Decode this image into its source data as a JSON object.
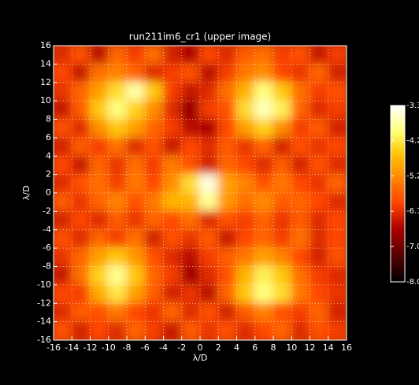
{
  "chart_data": {
    "type": "heatmap",
    "title": "run211im6_cr1 (upper image)",
    "x_label": "λ/D",
    "y_label": "λ/D",
    "xlim": [
      -16,
      16
    ],
    "ylim": [
      -16,
      16
    ],
    "xticks": [
      -16,
      -14,
      -12,
      -10,
      -8,
      -6,
      -4,
      -2,
      0,
      2,
      4,
      6,
      8,
      10,
      12,
      14,
      16
    ],
    "yticks": [
      -16,
      -14,
      -12,
      -10,
      -8,
      -6,
      -4,
      -2,
      0,
      2,
      4,
      6,
      8,
      10,
      12,
      14,
      16
    ],
    "grid": true,
    "x": [
      -15,
      -13,
      -11,
      -9,
      -7,
      -5,
      -3,
      -1,
      1,
      3,
      5,
      7,
      9,
      11,
      13,
      15
    ],
    "y": [
      15,
      13,
      11,
      9,
      7,
      5,
      3,
      1,
      -1,
      -3,
      -5,
      -7,
      -9,
      -11,
      -13,
      -15
    ],
    "z": [
      [
        -6.2,
        -5.8,
        -6.5,
        -5.6,
        -6.0,
        -5.5,
        -6.3,
        -6.6,
        -5.9,
        -6.2,
        -5.7,
        -5.5,
        -6.0,
        -5.8,
        -6.4,
        -6.0
      ],
      [
        -5.9,
        -6.4,
        -5.5,
        -5.3,
        -5.6,
        -6.2,
        -6.0,
        -5.8,
        -6.5,
        -6.0,
        -5.4,
        -5.2,
        -5.9,
        -6.1,
        -5.6,
        -6.3
      ],
      [
        -6.1,
        -5.6,
        -5.0,
        -4.4,
        -3.8,
        -4.6,
        -6.0,
        -6.4,
        -6.2,
        -5.5,
        -4.8,
        -4.0,
        -4.6,
        -5.5,
        -6.0,
        -5.8
      ],
      [
        -6.4,
        -5.7,
        -4.6,
        -4.0,
        -4.5,
        -5.2,
        -6.2,
        -6.8,
        -6.0,
        -5.8,
        -4.4,
        -3.7,
        -4.2,
        -5.6,
        -6.2,
        -6.0
      ],
      [
        -5.8,
        -6.2,
        -5.2,
        -4.6,
        -5.0,
        -5.6,
        -6.0,
        -6.5,
        -6.6,
        -5.9,
        -5.0,
        -4.5,
        -5.2,
        -6.0,
        -5.7,
        -6.3
      ],
      [
        -6.3,
        -5.7,
        -6.0,
        -5.5,
        -6.2,
        -5.8,
        -6.4,
        -5.9,
        -6.2,
        -5.7,
        -6.1,
        -5.6,
        -6.3,
        -5.8,
        -6.1,
        -5.9
      ],
      [
        -5.9,
        -6.4,
        -5.6,
        -6.1,
        -5.5,
        -6.0,
        -5.4,
        -5.8,
        -6.3,
        -5.6,
        -5.9,
        -6.2,
        -5.7,
        -6.3,
        -5.8,
        -6.2
      ],
      [
        -6.2,
        -5.8,
        -5.5,
        -6.0,
        -5.4,
        -5.9,
        -5.2,
        -4.4,
        -3.5,
        -5.0,
        -5.3,
        -5.8,
        -5.4,
        -5.9,
        -6.1,
        -5.6
      ],
      [
        -5.7,
        -6.1,
        -5.6,
        -5.3,
        -5.8,
        -5.4,
        -4.8,
        -4.8,
        -3.9,
        -5.1,
        -5.5,
        -5.2,
        -5.7,
        -5.6,
        -5.9,
        -6.2
      ],
      [
        -6.3,
        -5.9,
        -6.2,
        -5.7,
        -6.1,
        -5.6,
        -5.9,
        -5.5,
        -6.2,
        -5.8,
        -6.0,
        -5.6,
        -6.1,
        -5.7,
        -6.2,
        -5.9
      ],
      [
        -5.8,
        -6.2,
        -5.6,
        -6.0,
        -5.5,
        -6.3,
        -5.8,
        -6.1,
        -5.7,
        -6.4,
        -5.9,
        -5.6,
        -6.0,
        -5.5,
        -6.2,
        -5.9
      ],
      [
        -6.1,
        -5.6,
        -5.0,
        -4.6,
        -5.1,
        -5.8,
        -6.2,
        -6.5,
        -6.0,
        -5.7,
        -5.4,
        -5.0,
        -5.3,
        -5.9,
        -6.3,
        -5.8
      ],
      [
        -6.4,
        -5.5,
        -4.5,
        -3.9,
        -4.6,
        -5.6,
        -6.0,
        -6.7,
        -6.2,
        -5.8,
        -4.8,
        -4.2,
        -4.6,
        -5.5,
        -6.0,
        -6.2
      ],
      [
        -5.9,
        -6.0,
        -4.9,
        -4.3,
        -5.0,
        -5.7,
        -6.3,
        -6.1,
        -6.5,
        -5.6,
        -4.6,
        -4.0,
        -4.4,
        -5.4,
        -5.9,
        -6.1
      ],
      [
        -6.2,
        -5.7,
        -5.8,
        -5.4,
        -5.9,
        -6.1,
        -5.6,
        -6.2,
        -5.8,
        -6.3,
        -5.7,
        -5.3,
        -5.8,
        -6.0,
        -5.6,
        -6.3
      ],
      [
        -5.8,
        -6.3,
        -5.9,
        -6.2,
        -5.6,
        -6.0,
        -6.4,
        -5.7,
        -6.1,
        -5.8,
        -6.2,
        -5.9,
        -5.6,
        -6.2,
        -5.8,
        -6.0
      ]
    ],
    "clim": [
      -8.03,
      -3.34
    ],
    "colorbar_ticks": [
      -8.03,
      -7.09,
      -6.15,
      -5.21,
      -4.27,
      -3.34
    ]
  }
}
